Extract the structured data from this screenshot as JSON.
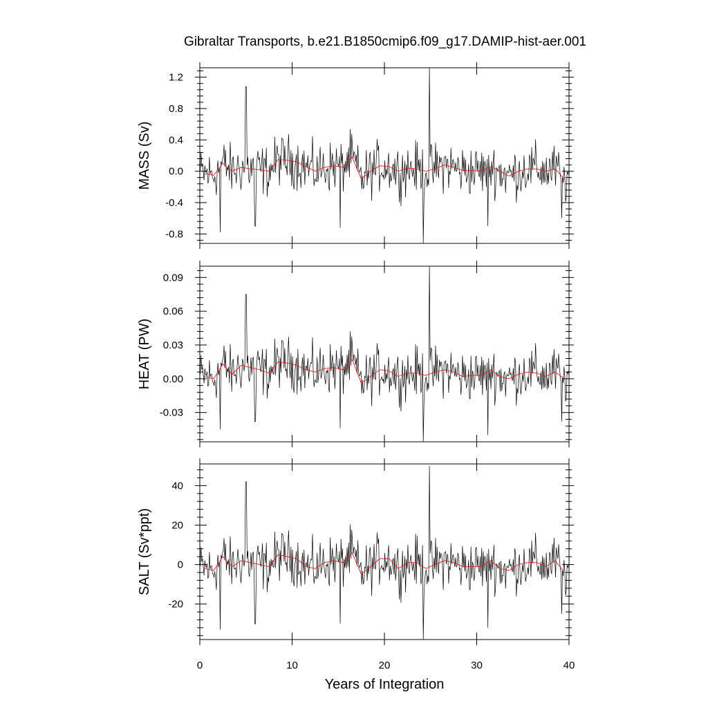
{
  "figure": {
    "title": "Gibraltar Transports, b.e21.B1850cmip6.f09_g17.DAMIP-hist-aer.001",
    "xlabel": "Years of Integration"
  },
  "colors": {
    "raw": "#000000",
    "smoothed": "#e01818",
    "background": "#ffffff"
  },
  "chart_data": [
    {
      "type": "line",
      "panel": "mass",
      "title": "",
      "ylabel": "MASS (Sv)",
      "xlim": [
        0,
        40
      ],
      "ylim": [
        -0.92,
        1.32
      ],
      "xticks": [
        0,
        10,
        20,
        30,
        40
      ],
      "yticks": [
        -0.8,
        -0.4,
        0.0,
        0.4,
        0.8,
        1.2
      ],
      "ytick_labels": [
        "-0.8",
        "-0.4",
        "0.0",
        "0.4",
        "0.8",
        "1.2"
      ],
      "grid": false,
      "series": [
        {
          "style": "raw-monthly",
          "amplitude": 0.2,
          "spikes": [
            [
              2.2,
              -0.78
            ],
            [
              5.0,
              1.08
            ],
            [
              6.0,
              -0.7
            ],
            [
              15.2,
              -0.72
            ],
            [
              24.2,
              -0.92
            ],
            [
              24.9,
              1.32
            ],
            [
              31.2,
              -0.7
            ],
            [
              39.2,
              -0.6
            ]
          ]
        },
        {
          "style": "annual-smoothed",
          "x": [
            0.5,
            1.5,
            2.5,
            3.5,
            4.5,
            5.5,
            6.5,
            7.5,
            8.5,
            9.5,
            10.5,
            11.5,
            12.5,
            13.5,
            14.5,
            15.5,
            16.5,
            17.5,
            18.5,
            19.5,
            20.5,
            21.5,
            22.5,
            23.5,
            24.5,
            25.5,
            26.5,
            27.5,
            28.5,
            29.5,
            30.5,
            31.5,
            32.5,
            33.5,
            34.5,
            35.5,
            36.5,
            37.5,
            38.5,
            39.5
          ],
          "y": [
            -0.03,
            -0.05,
            0.1,
            0.0,
            0.05,
            0.03,
            0.02,
            0.0,
            0.15,
            0.14,
            0.12,
            0.06,
            0.0,
            0.05,
            0.07,
            0.05,
            0.18,
            -0.1,
            0.0,
            0.07,
            0.06,
            0.0,
            0.04,
            0.03,
            0.0,
            0.03,
            0.08,
            0.05,
            0.01,
            0.01,
            0.0,
            0.06,
            0.0,
            -0.06,
            0.0,
            0.03,
            0.03,
            0.0,
            0.03,
            -0.1
          ]
        }
      ]
    },
    {
      "type": "line",
      "panel": "heat",
      "title": "",
      "ylabel": "HEAT (PW)",
      "xlim": [
        0,
        40
      ],
      "ylim": [
        -0.056,
        0.1
      ],
      "xticks": [
        0,
        10,
        20,
        30,
        40
      ],
      "yticks": [
        -0.03,
        0.0,
        0.03,
        0.06,
        0.09
      ],
      "ytick_labels": [
        "-0.03",
        "0.00",
        "0.03",
        "0.06",
        "0.09"
      ],
      "grid": false,
      "series": [
        {
          "style": "raw-monthly",
          "amplitude": 0.014,
          "spikes": [
            [
              2.2,
              -0.045
            ],
            [
              5.0,
              0.075
            ],
            [
              6.0,
              -0.038
            ],
            [
              15.2,
              -0.044
            ],
            [
              24.2,
              -0.056
            ],
            [
              24.9,
              0.1
            ],
            [
              31.2,
              -0.05
            ],
            [
              39.2,
              -0.038
            ]
          ]
        },
        {
          "style": "annual-smoothed",
          "x": [
            0.5,
            1.5,
            2.5,
            3.5,
            4.5,
            5.5,
            6.5,
            7.5,
            8.5,
            9.5,
            10.5,
            11.5,
            12.5,
            13.5,
            14.5,
            15.5,
            16.5,
            17.5,
            18.5,
            19.5,
            20.5,
            21.5,
            22.5,
            23.5,
            24.5,
            25.5,
            26.5,
            27.5,
            28.5,
            29.5,
            30.5,
            31.5,
            32.5,
            33.5,
            34.5,
            35.5,
            36.5,
            37.5,
            38.5,
            39.5
          ],
          "y": [
            0.002,
            0.0,
            0.013,
            0.004,
            0.012,
            0.01,
            0.008,
            0.005,
            0.015,
            0.014,
            0.012,
            0.008,
            0.006,
            0.009,
            0.01,
            0.008,
            0.017,
            -0.004,
            0.002,
            0.008,
            0.007,
            0.002,
            0.005,
            0.005,
            0.003,
            0.006,
            0.008,
            0.006,
            0.002,
            0.003,
            0.003,
            0.008,
            0.002,
            0.0,
            0.004,
            0.006,
            0.005,
            0.002,
            0.006,
            0.0
          ]
        }
      ]
    },
    {
      "type": "line",
      "panel": "salt",
      "title": "",
      "ylabel": "SALT (Sv*ppt)",
      "xlim": [
        0,
        40
      ],
      "ylim": [
        -38,
        51
      ],
      "xticks": [
        0,
        10,
        20,
        30,
        40
      ],
      "yticks": [
        -20,
        0,
        20,
        40
      ],
      "ytick_labels": [
        "-20",
        "0",
        "20",
        "40"
      ],
      "grid": false,
      "series": [
        {
          "style": "raw-monthly",
          "amplitude": 8,
          "spikes": [
            [
              2.2,
              -33
            ],
            [
              5.0,
              42
            ],
            [
              6.0,
              -30
            ],
            [
              15.2,
              -30
            ],
            [
              24.2,
              -38
            ],
            [
              24.9,
              50
            ],
            [
              31.2,
              -32
            ],
            [
              39.2,
              -25
            ]
          ]
        },
        {
          "style": "annual-smoothed",
          "x": [
            0.5,
            1.5,
            2.5,
            3.5,
            4.5,
            5.5,
            6.5,
            7.5,
            8.5,
            9.5,
            10.5,
            11.5,
            12.5,
            13.5,
            14.5,
            15.5,
            16.5,
            17.5,
            18.5,
            19.5,
            20.5,
            21.5,
            22.5,
            23.5,
            24.5,
            25.5,
            26.5,
            27.5,
            28.5,
            29.5,
            30.5,
            31.5,
            32.5,
            33.5,
            34.5,
            35.5,
            36.5,
            37.5,
            38.5,
            39.5
          ],
          "y": [
            -2,
            -3,
            4,
            -1,
            2,
            1,
            0,
            -1,
            5,
            4,
            3,
            -1,
            -2,
            1,
            2,
            1,
            6,
            -5,
            -1,
            3,
            3,
            -2,
            1,
            1,
            -2,
            0,
            2,
            1,
            -1,
            -1,
            -1,
            2,
            -2,
            -3,
            0,
            1,
            1,
            -1,
            2,
            -4
          ]
        }
      ]
    }
  ]
}
